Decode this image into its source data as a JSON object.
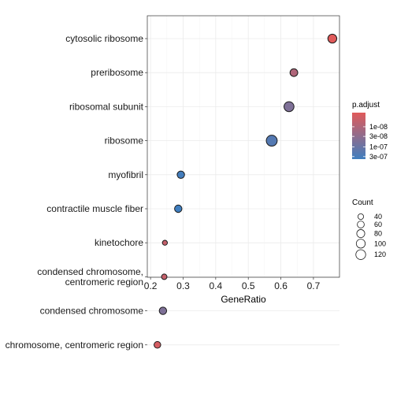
{
  "chart_data": {
    "type": "scatter",
    "title": "",
    "xlabel": "GeneRatio",
    "ylabel": "",
    "xlim": [
      0.19,
      0.78
    ],
    "x_ticks": [
      "0.2",
      "0.3",
      "0.4",
      "0.5",
      "0.6",
      "0.7"
    ],
    "x_tick_values": [
      0.2,
      0.3,
      0.4,
      0.5,
      0.6,
      0.7
    ],
    "grid": true,
    "legend_placement": "right",
    "color_low": "#e05a5a",
    "color_high": "#3f7ebf",
    "categories": [
      "cytosolic ribosome",
      "preribosome",
      "ribosomal subunit",
      "ribosome",
      "myofibril",
      "contractile muscle fiber",
      "kinetochore",
      "condensed chromosome, centromeric region",
      "condensed chromosome",
      "chromosome, centromeric region"
    ],
    "category_lines": [
      [
        "cytosolic ribosome"
      ],
      [
        "preribosome"
      ],
      [
        "ribosomal subunit"
      ],
      [
        "ribosome"
      ],
      [
        "myofibril"
      ],
      [
        "contractile muscle fiber"
      ],
      [
        "kinetochore"
      ],
      [
        "condensed chromosome,",
        "centromeric region"
      ],
      [
        "condensed chromosome"
      ],
      [
        "chromosome, centromeric region"
      ]
    ],
    "points": [
      {
        "category": "cytosolic ribosome",
        "x": 0.758,
        "count": 80,
        "p_adjust": 2e-09
      },
      {
        "category": "preribosome",
        "x": 0.64,
        "count": 60,
        "p_adjust": 1e-08
      },
      {
        "category": "ribosomal subunit",
        "x": 0.625,
        "count": 100,
        "p_adjust": 5e-08
      },
      {
        "category": "ribosome",
        "x": 0.572,
        "count": 120,
        "p_adjust": 2e-07
      },
      {
        "category": "myofibril",
        "x": 0.293,
        "count": 55,
        "p_adjust": 3.5e-07
      },
      {
        "category": "contractile muscle fiber",
        "x": 0.285,
        "count": 55,
        "p_adjust": 4e-07
      },
      {
        "category": "kinetochore",
        "x": 0.244,
        "count": 25,
        "p_adjust": 5e-09
      },
      {
        "category": "condensed chromosome, centromeric region",
        "x": 0.242,
        "count": 30,
        "p_adjust": 5e-09
      },
      {
        "category": "condensed chromosome",
        "x": 0.238,
        "count": 55,
        "p_adjust": 5e-08
      },
      {
        "category": "chromosome, centromeric region",
        "x": 0.221,
        "count": 45,
        "p_adjust": 3e-09
      }
    ],
    "color_legend": {
      "title": "p.adjust",
      "labels": [
        "1e-08",
        "3e-08",
        "1e-07",
        "3e-07"
      ],
      "values": [
        1e-08,
        3e-08,
        1e-07,
        3e-07
      ],
      "range": [
        2e-09,
        4e-07
      ]
    },
    "size_legend": {
      "title": "Count",
      "labels": [
        "40",
        "60",
        "80",
        "100",
        "120"
      ],
      "values": [
        40,
        60,
        80,
        100,
        120
      ]
    }
  }
}
